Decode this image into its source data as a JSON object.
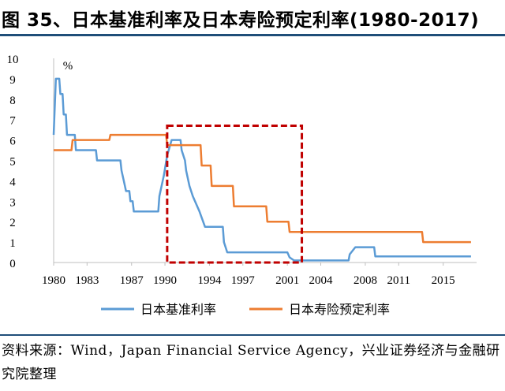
{
  "title": "图 35、日本基准利率及日本寿险预定利率(1980-2017)",
  "source": "资料来源：Wind，Japan Financial Service Agency，兴业证券经济与金融研究院整理",
  "colors": {
    "base_rate": "#5b9bd5",
    "insurance_rate": "#ed7d31",
    "highlight_box": "#c00000",
    "title_rule": "#1f4e79"
  },
  "chart_data": {
    "type": "line",
    "title": "",
    "xlabel": "",
    "ylabel": "%",
    "ylim": [
      0,
      10
    ],
    "xlim": [
      1980,
      2018
    ],
    "y_ticks": [
      "0",
      "1",
      "2",
      "3",
      "4",
      "5",
      "6",
      "7",
      "8",
      "9",
      "10"
    ],
    "x_ticks": [
      {
        "value": 1980,
        "label": "1980"
      },
      {
        "value": 1983,
        "label": "1983"
      },
      {
        "value": 1987,
        "label": "1987"
      },
      {
        "value": 1990,
        "label": "1990"
      },
      {
        "value": 1994,
        "label": "1994"
      },
      {
        "value": 1997,
        "label": "1997"
      },
      {
        "value": 2001,
        "label": "2001"
      },
      {
        "value": 2004,
        "label": "2004"
      },
      {
        "value": 2008,
        "label": "2008"
      },
      {
        "value": 2011,
        "label": "2011"
      },
      {
        "value": 2015,
        "label": "2015"
      }
    ],
    "grid": false,
    "legend_position": "bottom",
    "highlight_region": {
      "x": [
        1990.2,
        2002.3
      ],
      "y": [
        0,
        6.7
      ]
    },
    "series": [
      {
        "name": "日本基准利率",
        "points": [
          [
            1980.0,
            6.25
          ],
          [
            1980.2,
            9.0
          ],
          [
            1980.5,
            9.0
          ],
          [
            1980.6,
            8.25
          ],
          [
            1980.8,
            8.25
          ],
          [
            1980.9,
            7.25
          ],
          [
            1981.1,
            7.25
          ],
          [
            1981.2,
            6.25
          ],
          [
            1981.9,
            6.25
          ],
          [
            1982.0,
            5.5
          ],
          [
            1983.8,
            5.5
          ],
          [
            1983.9,
            5.0
          ],
          [
            1986.0,
            5.0
          ],
          [
            1986.1,
            4.5
          ],
          [
            1986.3,
            4.0
          ],
          [
            1986.5,
            3.5
          ],
          [
            1986.8,
            3.5
          ],
          [
            1986.9,
            3.0
          ],
          [
            1987.1,
            3.0
          ],
          [
            1987.2,
            2.5
          ],
          [
            1989.4,
            2.5
          ],
          [
            1989.5,
            3.25
          ],
          [
            1989.7,
            3.75
          ],
          [
            1989.9,
            4.25
          ],
          [
            1990.2,
            5.25
          ],
          [
            1990.6,
            6.0
          ],
          [
            1991.4,
            6.0
          ],
          [
            1991.5,
            5.5
          ],
          [
            1991.8,
            5.0
          ],
          [
            1991.9,
            4.5
          ],
          [
            1992.2,
            3.75
          ],
          [
            1992.5,
            3.25
          ],
          [
            1993.1,
            2.5
          ],
          [
            1993.6,
            1.75
          ],
          [
            1995.2,
            1.75
          ],
          [
            1995.3,
            1.0
          ],
          [
            1995.6,
            0.5
          ],
          [
            2001.0,
            0.5
          ],
          [
            2001.2,
            0.25
          ],
          [
            2001.6,
            0.1
          ],
          [
            2006.5,
            0.1
          ],
          [
            2006.6,
            0.4
          ],
          [
            2007.1,
            0.75
          ],
          [
            2008.8,
            0.75
          ],
          [
            2008.9,
            0.3
          ],
          [
            2017.5,
            0.3
          ]
        ]
      },
      {
        "name": "日本寿险预定利率",
        "points": [
          [
            1980.0,
            5.5
          ],
          [
            1981.6,
            5.5
          ],
          [
            1981.7,
            6.0
          ],
          [
            1985.0,
            6.0
          ],
          [
            1985.1,
            6.25
          ],
          [
            1990.1,
            6.25
          ],
          [
            1990.2,
            5.75
          ],
          [
            1993.2,
            5.75
          ],
          [
            1993.3,
            4.75
          ],
          [
            1994.1,
            4.75
          ],
          [
            1994.2,
            3.75
          ],
          [
            1996.1,
            3.75
          ],
          [
            1996.2,
            2.75
          ],
          [
            1999.1,
            2.75
          ],
          [
            1999.2,
            2.0
          ],
          [
            2001.1,
            2.0
          ],
          [
            2001.2,
            1.5
          ],
          [
            2013.1,
            1.5
          ],
          [
            2013.2,
            1.0
          ],
          [
            2017.5,
            1.0
          ]
        ]
      }
    ]
  }
}
